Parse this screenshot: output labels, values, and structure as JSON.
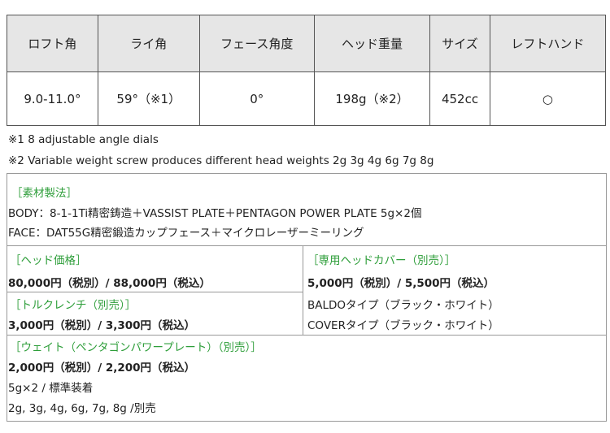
{
  "table": {
    "headers": [
      "ロフト角",
      "ライ角",
      "フェース角度",
      "ヘッド重量",
      "サイズ",
      "レフトハンド"
    ],
    "rows": [
      [
        "9.0-11.0°",
        "59°（※1）",
        "0°",
        "198g（※2）",
        "452cc",
        "○"
      ]
    ]
  },
  "notes": [
    "※1 8 adjustable angle dials",
    "※2 Variable weight screw produces different head weights 2g 3g 4g 6g 7g 8g"
  ],
  "material": {
    "title": "［素材製法］",
    "lines": [
      "BODY：8-1-1Ti精密鋳造＋VASSIST PLATE＋PENTAGON POWER PLATE 5g×2個",
      "FACE：DAT55G精密鍛造カップフェース＋マイクロレーザーミーリング"
    ]
  },
  "head_price": {
    "title": "［ヘッド価格］",
    "text": "80,000円（税別）/ 88,000円（税込）"
  },
  "head_cover": {
    "title": "［専用ヘッドカバー（別売）］",
    "text": "5,000円（税別）/ 5,500円（税込）",
    "lines": [
      "BALDOタイプ（ブラック・ホワイト）",
      "COVERタイプ（ブラック・ホワイト）"
    ]
  },
  "torque_wrench": {
    "title": "［トルクレンチ（別売）］",
    "text": "3,000円（税別）/ 3,300円（税込）"
  },
  "weight": {
    "title": "［ウェイト（ペンタゴンパワープレート）（別売）］",
    "text": "2,000円（税別）/ 2,200円（税込）",
    "lines": [
      "5g×2 / 標準装着",
      "2g, 3g, 4g, 6g, 7g, 8g /別売"
    ]
  }
}
